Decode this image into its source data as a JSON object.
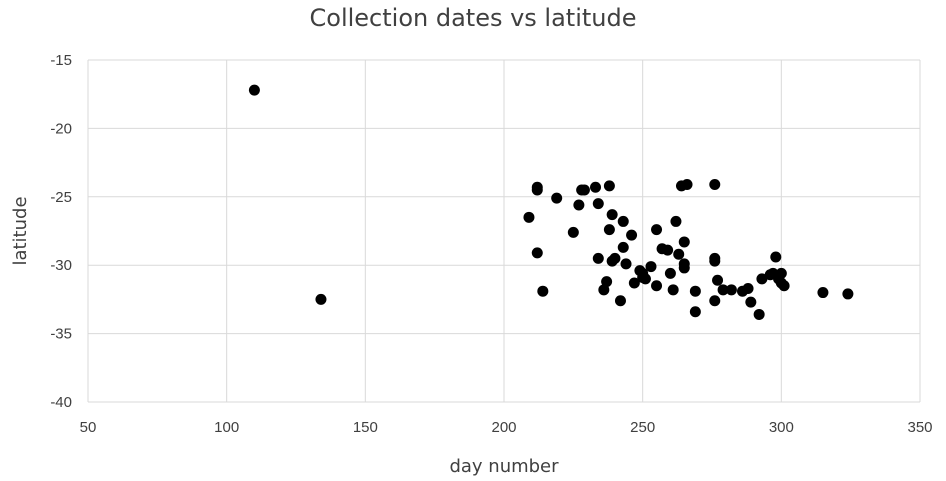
{
  "chart_data": {
    "type": "scatter",
    "title": "Collection dates vs latitude",
    "xlabel": "day number",
    "ylabel": "latitude",
    "xlim": [
      50,
      350
    ],
    "ylim": [
      -40,
      -15
    ],
    "x_ticks": [
      50,
      100,
      150,
      200,
      250,
      300,
      350
    ],
    "y_ticks": [
      -15,
      -20,
      -25,
      -30,
      -35,
      -40
    ],
    "grid": true,
    "legend": "none",
    "marker_color": "#000000",
    "series": [
      {
        "points": [
          [
            110,
            -17.2
          ],
          [
            134,
            -32.5
          ],
          [
            209,
            -26.5
          ],
          [
            212,
            -24.3
          ],
          [
            212,
            -24.5
          ],
          [
            212,
            -29.1
          ],
          [
            214,
            -31.9
          ],
          [
            219,
            -25.1
          ],
          [
            225,
            -27.6
          ],
          [
            227,
            -25.6
          ],
          [
            228,
            -24.5
          ],
          [
            229,
            -24.5
          ],
          [
            233,
            -24.3
          ],
          [
            234,
            -25.5
          ],
          [
            234,
            -29.5
          ],
          [
            236,
            -31.8
          ],
          [
            237,
            -31.2
          ],
          [
            238,
            -24.2
          ],
          [
            238,
            -27.4
          ],
          [
            239,
            -26.3
          ],
          [
            239,
            -29.7
          ],
          [
            240,
            -29.5
          ],
          [
            242,
            -32.6
          ],
          [
            243,
            -26.8
          ],
          [
            243,
            -28.7
          ],
          [
            244,
            -29.9
          ],
          [
            246,
            -27.8
          ],
          [
            247,
            -31.3
          ],
          [
            249,
            -30.4
          ],
          [
            250,
            -30.6
          ],
          [
            250,
            -30.9
          ],
          [
            251,
            -31.0
          ],
          [
            253,
            -30.1
          ],
          [
            255,
            -27.4
          ],
          [
            255,
            -31.5
          ],
          [
            257,
            -28.8
          ],
          [
            259,
            -28.9
          ],
          [
            260,
            -30.6
          ],
          [
            261,
            -31.8
          ],
          [
            262,
            -26.8
          ],
          [
            263,
            -29.2
          ],
          [
            264,
            -24.2
          ],
          [
            265,
            -28.3
          ],
          [
            265,
            -29.9
          ],
          [
            265,
            -30.2
          ],
          [
            266,
            -24.1
          ],
          [
            269,
            -33.4
          ],
          [
            269,
            -31.9
          ],
          [
            276,
            -24.1
          ],
          [
            276,
            -29.5
          ],
          [
            276,
            -29.7
          ],
          [
            276,
            -32.6
          ],
          [
            277,
            -31.1
          ],
          [
            279,
            -31.8
          ],
          [
            282,
            -31.8
          ],
          [
            286,
            -31.9
          ],
          [
            288,
            -31.7
          ],
          [
            289,
            -32.7
          ],
          [
            292,
            -33.6
          ],
          [
            293,
            -31.0
          ],
          [
            296,
            -30.7
          ],
          [
            297,
            -30.6
          ],
          [
            298,
            -29.4
          ],
          [
            299,
            -31.0
          ],
          [
            300,
            -30.6
          ],
          [
            300,
            -31.3
          ],
          [
            301,
            -31.5
          ],
          [
            315,
            -32.0
          ],
          [
            324,
            -32.1
          ]
        ]
      }
    ]
  }
}
